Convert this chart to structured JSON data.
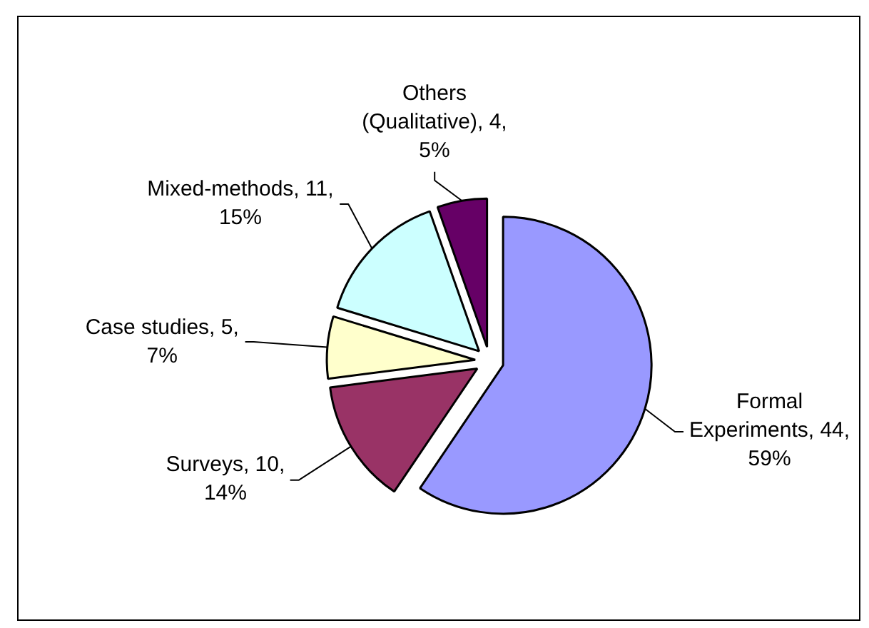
{
  "chart_data": {
    "type": "pie",
    "categories": [
      "Formal Experiments",
      "Surveys",
      "Case studies",
      "Mixed-methods",
      "Others (Qualitative)"
    ],
    "values": [
      44,
      10,
      5,
      11,
      4
    ],
    "colors": [
      "#9999ff",
      "#993366",
      "#ffffcc",
      "#ccffff",
      "#660066"
    ],
    "value_labels": [
      "44, 59%",
      "10, 14%",
      "5, 7%",
      "11, 15%",
      "4, 5%"
    ]
  }
}
